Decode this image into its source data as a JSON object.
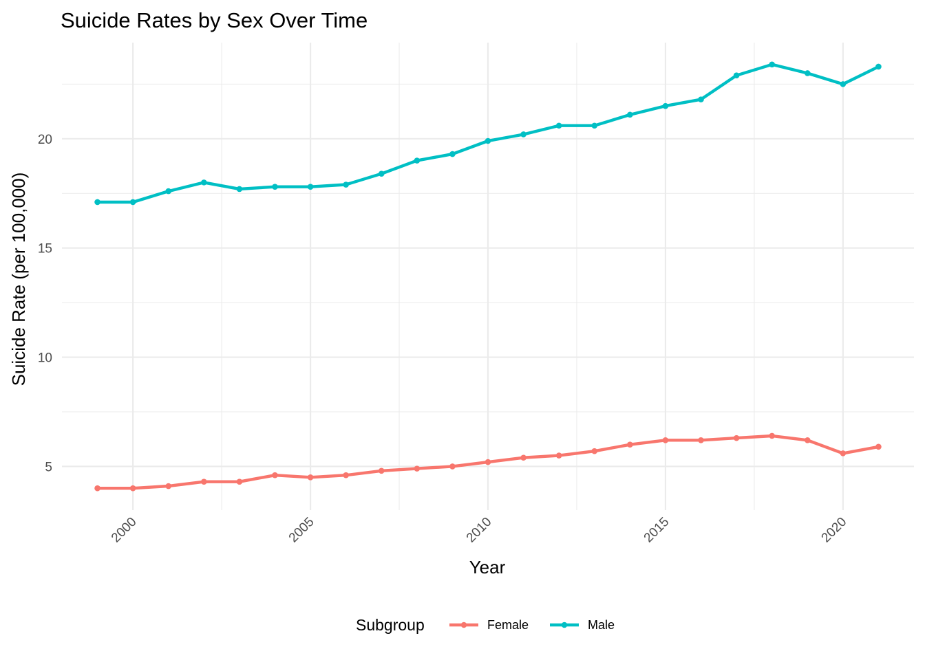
{
  "chart_data": {
    "type": "line",
    "title": "Suicide Rates by Sex Over Time",
    "xlabel": "Year",
    "ylabel": "Suicide Rate (per 100,000)",
    "x": [
      1999,
      2000,
      2001,
      2002,
      2003,
      2004,
      2005,
      2006,
      2007,
      2008,
      2009,
      2010,
      2011,
      2012,
      2013,
      2014,
      2015,
      2016,
      2017,
      2018,
      2019,
      2020,
      2021
    ],
    "x_ticks": [
      "2000",
      "2005",
      "2010",
      "2015",
      "2020"
    ],
    "y_ticks": [
      "5",
      "10",
      "15",
      "20"
    ],
    "xlim": [
      1998,
      2022
    ],
    "ylim": [
      3.0,
      24.4
    ],
    "grid": true,
    "legend": {
      "title": "Subgroup",
      "position": "bottom"
    },
    "series": [
      {
        "name": "Female",
        "color": "#F8766D",
        "values": [
          4.0,
          4.0,
          4.1,
          4.3,
          4.3,
          4.6,
          4.5,
          4.6,
          4.8,
          4.9,
          5.0,
          5.2,
          5.4,
          5.5,
          5.7,
          6.0,
          6.2,
          6.2,
          6.3,
          6.4,
          6.2,
          5.6,
          5.9
        ]
      },
      {
        "name": "Male",
        "color": "#00BFC4",
        "values": [
          17.1,
          17.1,
          17.6,
          18.0,
          17.7,
          17.8,
          17.8,
          17.9,
          18.4,
          19.0,
          19.3,
          19.9,
          20.2,
          20.6,
          20.6,
          21.1,
          21.5,
          21.8,
          22.9,
          23.4,
          23.0,
          22.5,
          23.3
        ]
      }
    ]
  }
}
